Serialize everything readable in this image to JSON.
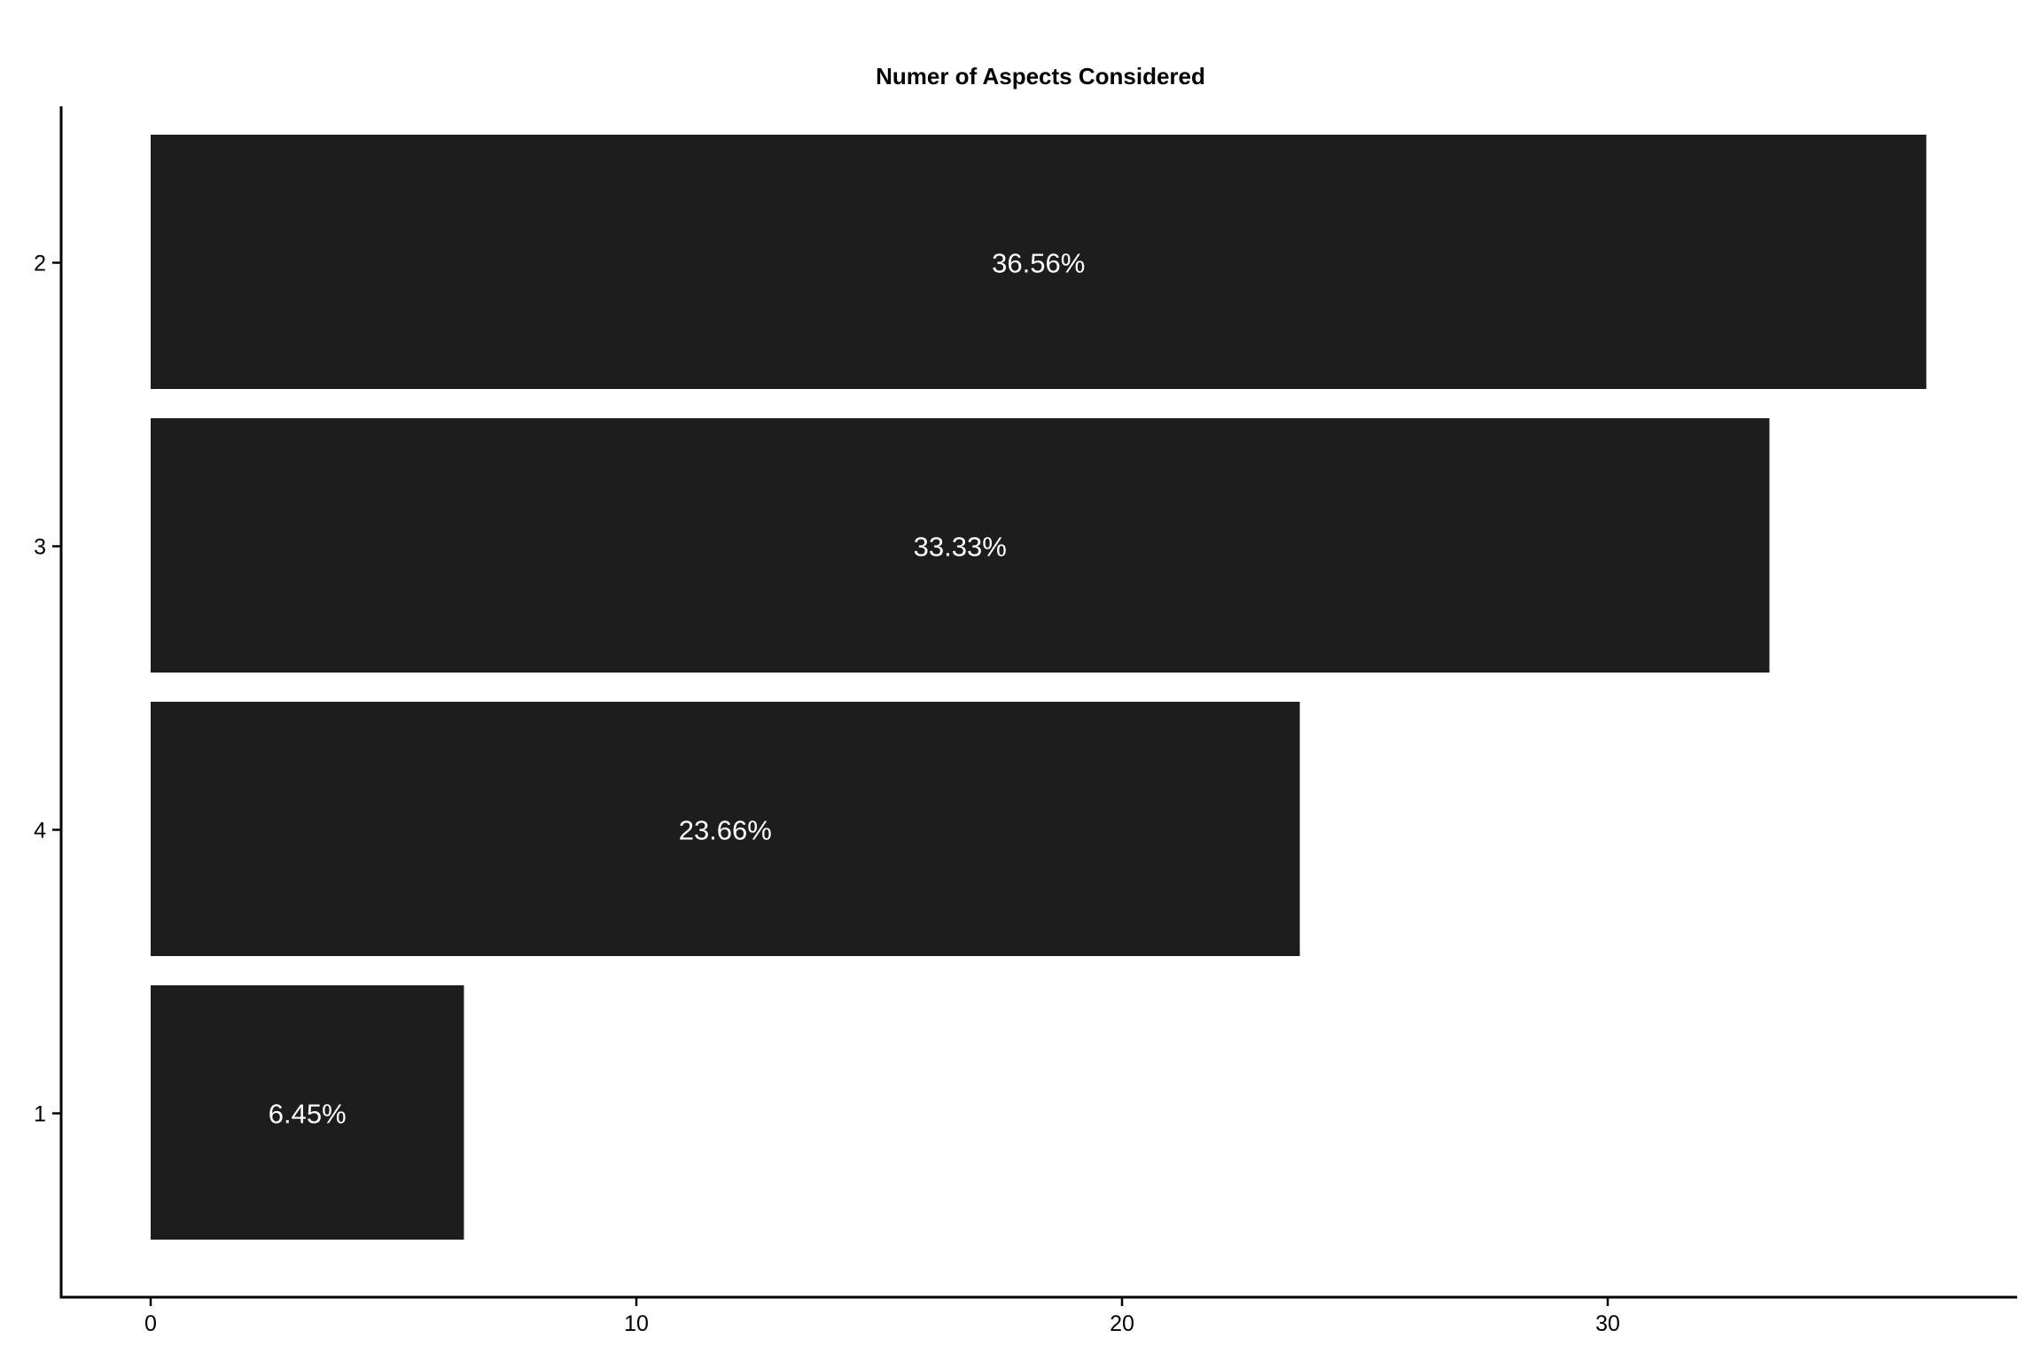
{
  "chart_data": {
    "type": "bar",
    "orientation": "horizontal",
    "title": "Numer of Aspects Considered",
    "xlabel": "",
    "ylabel": "",
    "categories": [
      "2",
      "3",
      "4",
      "1"
    ],
    "values": [
      36.56,
      33.33,
      23.66,
      6.45
    ],
    "data_labels": [
      "36.56%",
      "33.33%",
      "23.66%",
      "6.45%"
    ],
    "xlim": [
      0,
      38
    ],
    "x_ticks": [
      0,
      10,
      20,
      30
    ],
    "x_tick_labels": [
      "0",
      "10",
      "20",
      "30"
    ],
    "grid": false,
    "legend": "none",
    "bar_color": "#1d1d1d",
    "label_color": "#ffffff"
  }
}
